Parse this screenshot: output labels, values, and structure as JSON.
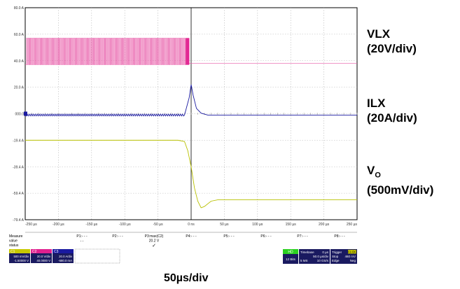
{
  "chart_data": {
    "type": "line",
    "x_unit": "µs",
    "xlim": [
      -250,
      250
    ],
    "x_tick_labels": [
      "-250 µs",
      "-200 µs",
      "-150 µs",
      "-100 µs",
      "-50 µs",
      "0 ns",
      "50 µs",
      "100 µs",
      "150 µs",
      "200 µs",
      "250 µs"
    ],
    "y_tick_labels": [
      "80.0 A",
      "60.0 A",
      "40.0 A",
      "20.0 A",
      "000.0",
      "-19.4 A",
      "-39.4 A",
      "-59.4 A",
      "-79.4 A"
    ],
    "grid": true,
    "series": [
      {
        "name": "VLX",
        "scale": "(20V/div)",
        "color": "#e0208f",
        "trace_color": "#e85aa8",
        "behavior": "switching",
        "high_div": 2.85,
        "low_div": 1.85,
        "switch_start_us": -248,
        "switch_end_us": -3,
        "burst_start_us": -8,
        "settled_div": 1.9
      },
      {
        "name": "ILX",
        "scale": "(20A/div)",
        "color": "#1a1aa0",
        "behavior": "ripple_then_spike",
        "baseline_div": -0.05,
        "points": [
          [
            -250,
            -0.05
          ],
          [
            -10,
            -0.05
          ],
          [
            -3,
            0.6
          ],
          [
            0,
            1.1
          ],
          [
            3,
            0.7
          ],
          [
            8,
            0.2
          ],
          [
            15,
            0.02
          ],
          [
            25,
            -0.05
          ],
          [
            250,
            -0.05
          ]
        ]
      },
      {
        "name": "VO",
        "name_sub": "O",
        "scale": "(500mV/div)",
        "color": "#b8c000",
        "points": [
          [
            -250,
            -1.0
          ],
          [
            -20,
            -1.0
          ],
          [
            -10,
            -1.05
          ],
          [
            -5,
            -1.4
          ],
          [
            0,
            -2.0
          ],
          [
            5,
            -2.8
          ],
          [
            10,
            -3.3
          ],
          [
            15,
            -3.55
          ],
          [
            20,
            -3.5
          ],
          [
            30,
            -3.3
          ],
          [
            40,
            -3.25
          ],
          [
            60,
            -3.25
          ],
          [
            250,
            -3.25
          ]
        ]
      }
    ]
  },
  "measure_bar": {
    "row_labels": [
      "Measure",
      "value",
      "status"
    ],
    "params": [
      "P1:- - -",
      "P2:- - -",
      "P3:max(C2)",
      "P4:- - -",
      "P5:- - -",
      "P6:- - -",
      "P7:- - -",
      "P8:- - -"
    ],
    "p3_value": "20.2 V",
    "p3_status": "✓",
    "dash": "- -"
  },
  "channels": [
    {
      "id": "C1",
      "color": "#c8c800",
      "vdiv": "500 mV/div",
      "offset": "-1.50000 V"
    },
    {
      "id": "C2",
      "color": "#e0208f",
      "vdiv": "20.0 V/div",
      "offset": "40.0000 V"
    },
    {
      "id": "C3",
      "color": "#1a1aa0",
      "vdiv": "20.0 A/div",
      "offset": "-680.0 mA"
    }
  ],
  "hd_badge": {
    "label": "HD",
    "bits": "12 Bits"
  },
  "timebase": {
    "title": "Timebase",
    "delay": "0 µs",
    "per_div": "50.0 µs/div",
    "samples": "5 MS",
    "rate": "10 GS/s"
  },
  "trigger": {
    "title": "Trigger",
    "chan": "C1 DC",
    "mode": "Stop",
    "level": "460 mV",
    "type": "Edge",
    "slope": "Neg"
  },
  "time_div_label": "50µs/div"
}
